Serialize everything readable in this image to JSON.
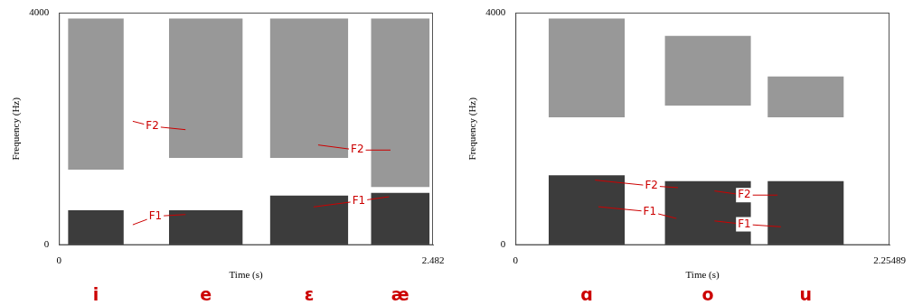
{
  "chart_data": [
    {
      "type": "spectrogram",
      "x_label": "Time (s)",
      "y_label": "Frequency (Hz)",
      "xlim": [
        0,
        2.482
      ],
      "xticks": [
        0,
        2.482
      ],
      "ylim": [
        0,
        4000
      ],
      "yticks": [
        0,
        4000
      ],
      "grid": false,
      "color": "#1a1a1a",
      "segments": [
        {
          "label": "i",
          "start": 0.06,
          "end": 0.43,
          "bands": [
            [
              0,
              600
            ],
            [
              1300,
              3900
            ]
          ]
        },
        {
          "label": "e",
          "start": 0.73,
          "end": 1.22,
          "bands": [
            [
              0,
              600
            ],
            [
              1500,
              3900
            ]
          ]
        },
        {
          "label": "ɛ",
          "start": 1.4,
          "end": 1.92,
          "bands": [
            [
              0,
              850
            ],
            [
              1500,
              3900
            ]
          ]
        },
        {
          "label": "æ",
          "start": 2.07,
          "end": 2.46,
          "bands": [
            [
              0,
              900
            ],
            [
              1000,
              3900
            ]
          ]
        }
      ],
      "annotations": [
        {
          "text": "F2",
          "at": [
            0.62,
            2044
          ],
          "targets": [
            [
              0.49,
              2131
            ],
            [
              0.84,
              1986
            ]
          ]
        },
        {
          "text": "F1",
          "at": [
            0.64,
            496
          ],
          "targets": [
            [
              0.49,
              350
            ],
            [
              0.84,
              526
            ]
          ]
        },
        {
          "text": "F2",
          "at": [
            1.98,
            1635
          ],
          "targets": [
            [
              1.72,
              1723
            ],
            [
              2.2,
              1635
            ]
          ]
        },
        {
          "text": "F1",
          "at": [
            1.99,
            759
          ],
          "targets": [
            [
              1.69,
              657
            ],
            [
              2.19,
              832
            ]
          ]
        }
      ]
    },
    {
      "type": "spectrogram",
      "x_label": "Time (s)",
      "y_label": "Frequency (Hz)",
      "xlim": [
        0,
        2.25489
      ],
      "xticks": [
        0,
        2.25489
      ],
      "ylim": [
        0,
        4000
      ],
      "yticks": [
        0,
        4000
      ],
      "grid": false,
      "color": "#1a1a1a",
      "segments": [
        {
          "label": "ɑ",
          "start": 0.2,
          "end": 0.66,
          "bands": [
            [
              0,
              1200
            ],
            [
              2200,
              3900
            ]
          ]
        },
        {
          "label": "o",
          "start": 0.9,
          "end": 1.42,
          "bands": [
            [
              0,
              1100
            ],
            [
              2400,
              3600
            ]
          ]
        },
        {
          "label": "u",
          "start": 1.52,
          "end": 1.98,
          "bands": [
            [
              0,
              1100
            ],
            [
              2200,
              2900
            ]
          ]
        }
      ],
      "annotations": [
        {
          "text": "F2",
          "at": [
            0.82,
            1018
          ],
          "targets": [
            [
              0.48,
              1118
            ],
            [
              0.98,
              989
            ]
          ]
        },
        {
          "text": "F1",
          "at": [
            0.81,
            574
          ],
          "targets": [
            [
              0.5,
              660
            ],
            [
              0.97,
              459
            ]
          ]
        },
        {
          "text": "F2",
          "at": [
            1.38,
            860
          ],
          "targets": [
            [
              1.2,
              932
            ],
            [
              1.58,
              860
            ]
          ]
        },
        {
          "text": "F1",
          "at": [
            1.38,
            358
          ],
          "targets": [
            [
              1.2,
              416
            ],
            [
              1.6,
              315
            ]
          ]
        }
      ]
    }
  ]
}
